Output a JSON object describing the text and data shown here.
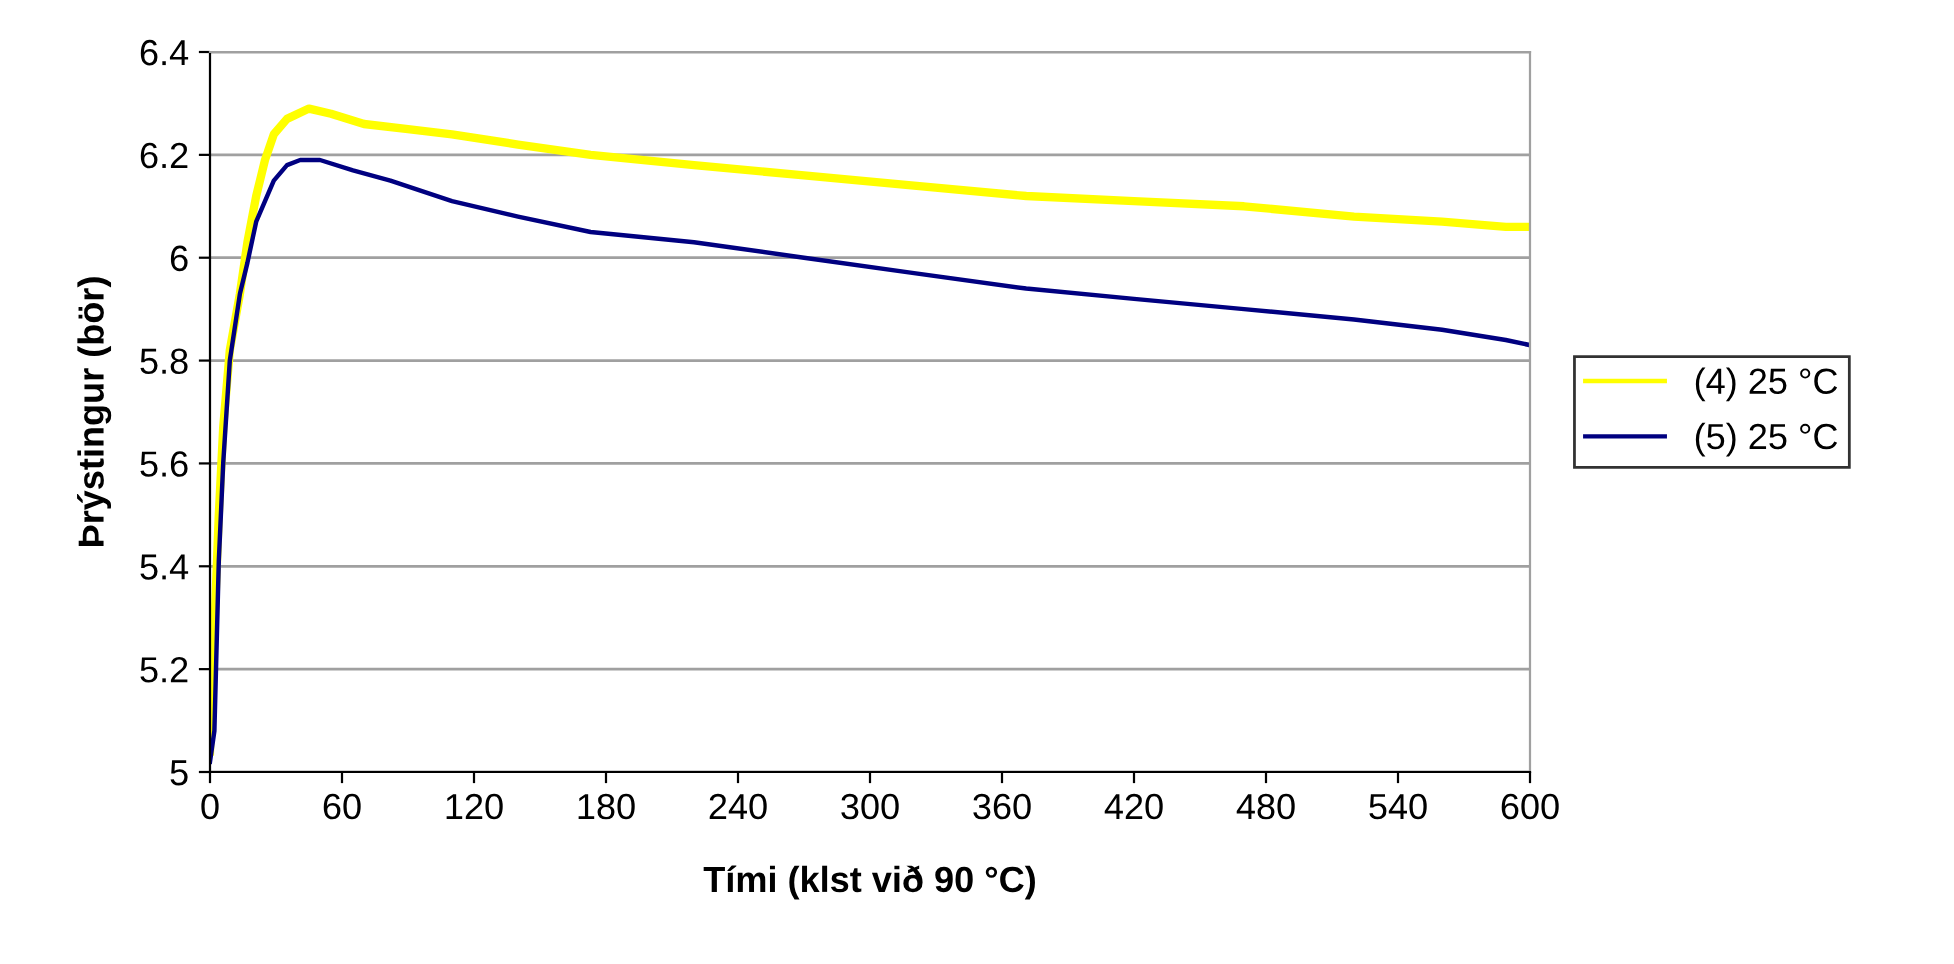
{
  "chart_data": {
    "type": "line",
    "xlabel": "Tími (klst við 90 °C)",
    "ylabel": "Þrýstingur (bör)",
    "xlim": [
      0,
      600
    ],
    "xticks": [
      0,
      60,
      120,
      180,
      240,
      300,
      360,
      420,
      480,
      540,
      600
    ],
    "ylim": [
      5,
      6.4
    ],
    "yticks": [
      5,
      5.2,
      5.4,
      5.6,
      5.8,
      6,
      6.2,
      6.4
    ],
    "grid": "y",
    "legend": "right",
    "line_style": "solid",
    "marker": "none",
    "series": [
      {
        "name": "(4) 25 °C",
        "color": "#ffff00",
        "x": [
          0,
          2,
          4,
          6,
          9,
          13.6,
          17,
          21,
          25,
          29,
          35,
          45,
          55,
          70,
          90,
          110,
          140,
          173,
          220,
          270,
          320,
          371,
          420,
          470,
          520,
          560,
          589,
          600
        ],
        "values": [
          5.04,
          5.28,
          5.5,
          5.67,
          5.82,
          5.93,
          6.03,
          6.12,
          6.19,
          6.24,
          6.27,
          6.29,
          6.28,
          6.26,
          6.25,
          6.24,
          6.22,
          6.2,
          6.18,
          6.16,
          6.14,
          6.12,
          6.11,
          6.1,
          6.08,
          6.07,
          6.06,
          6.06
        ]
      },
      {
        "name": "(5) 25 °C",
        "color": "#000080",
        "x": [
          0,
          2,
          4,
          6,
          9,
          13.6,
          17,
          21,
          25,
          29,
          35,
          41,
          50,
          65,
          82,
          110,
          140,
          173,
          220,
          270,
          320,
          371,
          420,
          470,
          520,
          560,
          589,
          600
        ],
        "values": [
          5.02,
          5.08,
          5.41,
          5.6,
          5.8,
          5.93,
          5.99,
          6.07,
          6.11,
          6.15,
          6.18,
          6.19,
          6.19,
          6.17,
          6.15,
          6.11,
          6.08,
          6.05,
          6.03,
          6.0,
          5.97,
          5.94,
          5.92,
          5.9,
          5.88,
          5.86,
          5.84,
          5.83
        ]
      }
    ]
  }
}
